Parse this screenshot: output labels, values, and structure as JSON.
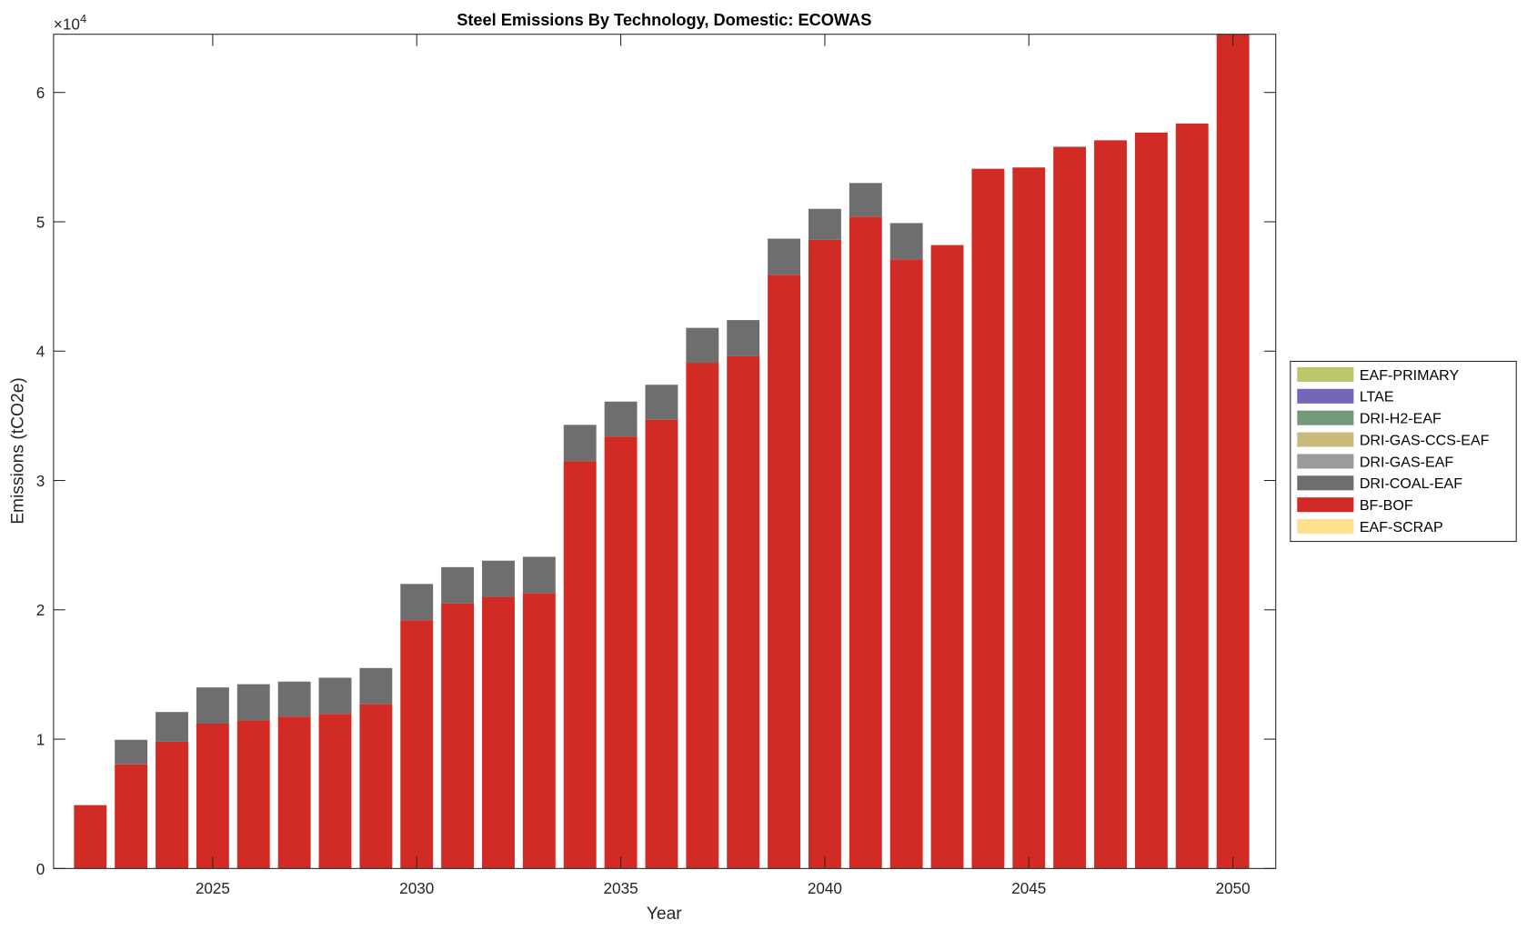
{
  "chart_data": {
    "type": "bar",
    "stacked": true,
    "title": "Steel Emissions By Technology, Domestic: ECOWAS",
    "xlabel": "Year",
    "ylabel": "Emissions (tCO2e)",
    "y_exponent_label": "×10",
    "y_exponent": "4",
    "xlim": [
      2021.1,
      2051.05
    ],
    "ylim": [
      0,
      64500
    ],
    "x_ticks": [
      2025,
      2030,
      2035,
      2040,
      2045,
      2050
    ],
    "y_ticks": [
      0,
      10000,
      20000,
      30000,
      40000,
      50000,
      60000
    ],
    "y_tick_labels": [
      "0",
      "1",
      "2",
      "3",
      "4",
      "5",
      "6"
    ],
    "grid": false,
    "legend_position": "outside-right",
    "categories": [
      2022,
      2023,
      2024,
      2025,
      2026,
      2027,
      2028,
      2029,
      2030,
      2031,
      2032,
      2033,
      2034,
      2035,
      2036,
      2037,
      2038,
      2039,
      2040,
      2041,
      2042,
      2043,
      2044,
      2045,
      2046,
      2047,
      2048,
      2049,
      2050
    ],
    "series": [
      {
        "name": "EAF-SCRAP",
        "color": "#FFE08F",
        "values": [
          0,
          0,
          0,
          0,
          0,
          0,
          0,
          0,
          0,
          0,
          0,
          0,
          0,
          0,
          0,
          0,
          0,
          0,
          0,
          0,
          0,
          0,
          0,
          0,
          0,
          0,
          0,
          0,
          0
        ]
      },
      {
        "name": "BF-BOF",
        "color": "#D22B25",
        "values": [
          4900,
          8050,
          9800,
          11200,
          11450,
          11750,
          11950,
          12700,
          19200,
          20500,
          21000,
          21300,
          31500,
          33400,
          34700,
          39100,
          39600,
          45900,
          48600,
          50400,
          47100,
          48200,
          54100,
          54200,
          55800,
          56300,
          56900,
          57600,
          65000
        ]
      },
      {
        "name": "DRI-COAL-EAF",
        "color": "#6E6E6E",
        "values": [
          0,
          1900,
          2300,
          2800,
          2800,
          2700,
          2800,
          2800,
          2800,
          2800,
          2800,
          2800,
          2800,
          2700,
          2700,
          2700,
          2800,
          2800,
          2400,
          2600,
          2800,
          0,
          0,
          0,
          0,
          0,
          0,
          0,
          0
        ]
      },
      {
        "name": "DRI-GAS-EAF",
        "color": "#9B9B9B",
        "values": [
          0,
          0,
          0,
          0,
          0,
          0,
          0,
          0,
          0,
          0,
          0,
          0,
          0,
          0,
          0,
          0,
          0,
          0,
          0,
          0,
          0,
          0,
          0,
          0,
          0,
          0,
          0,
          0,
          0
        ]
      },
      {
        "name": "DRI-GAS-CCS-EAF",
        "color": "#C7BC7E",
        "values": [
          0,
          0,
          0,
          0,
          0,
          0,
          0,
          0,
          0,
          0,
          0,
          0,
          0,
          0,
          0,
          0,
          0,
          0,
          0,
          0,
          0,
          0,
          0,
          0,
          0,
          0,
          0,
          0,
          0
        ]
      },
      {
        "name": "DRI-H2-EAF",
        "color": "#729A7A",
        "values": [
          0,
          0,
          0,
          0,
          0,
          0,
          0,
          0,
          0,
          0,
          0,
          0,
          0,
          0,
          0,
          0,
          0,
          0,
          0,
          0,
          0,
          0,
          0,
          0,
          0,
          0,
          0,
          0,
          0
        ]
      },
      {
        "name": "LTAE",
        "color": "#7466B8",
        "values": [
          0,
          0,
          0,
          0,
          0,
          0,
          0,
          0,
          0,
          0,
          0,
          0,
          0,
          0,
          0,
          0,
          0,
          0,
          0,
          0,
          0,
          0,
          0,
          0,
          0,
          0,
          0,
          0,
          0
        ]
      },
      {
        "name": "EAF-PRIMARY",
        "color": "#BEC66B",
        "values": [
          0,
          0,
          0,
          0,
          0,
          0,
          0,
          0,
          0,
          0,
          0,
          0,
          0,
          0,
          0,
          0,
          0,
          0,
          0,
          0,
          0,
          0,
          0,
          0,
          0,
          0,
          0,
          0,
          0
        ]
      }
    ],
    "legend_order": [
      "EAF-PRIMARY",
      "LTAE",
      "DRI-H2-EAF",
      "DRI-GAS-CCS-EAF",
      "DRI-GAS-EAF",
      "DRI-COAL-EAF",
      "BF-BOF",
      "EAF-SCRAP"
    ]
  }
}
